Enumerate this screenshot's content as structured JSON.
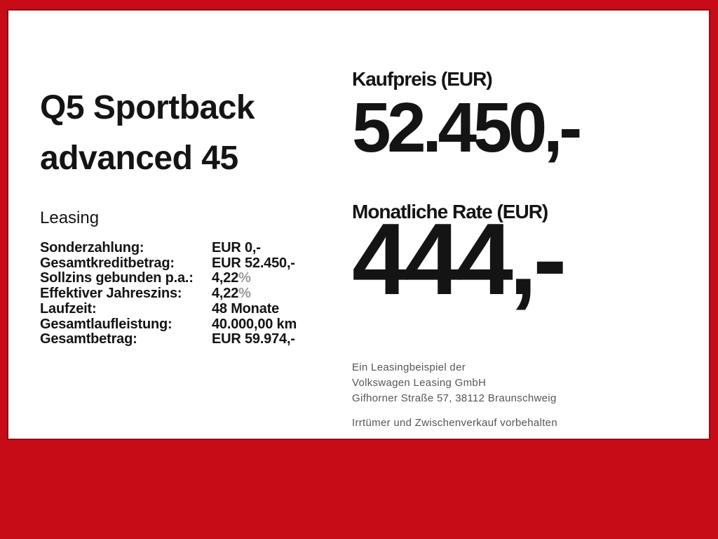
{
  "colors": {
    "frame_red": "#c70b17",
    "card_bg": "#ffffff",
    "card_edge": "#8c1016",
    "text_primary": "#141414",
    "text_muted": "#9b9b9b",
    "disclaimer_gray": "#565656"
  },
  "vehicle": {
    "title_line1": "Q5 Sportback",
    "title_line2": "advanced 45"
  },
  "leasing": {
    "heading": "Leasing",
    "rows": [
      {
        "label": "Sonderzahlung:",
        "value": "EUR 0,-"
      },
      {
        "label": "Gesamtkreditbetrag:",
        "value": "EUR 52.450,-"
      },
      {
        "label": "Sollzins gebunden p.a.:",
        "value": "4,22",
        "suffix": "%"
      },
      {
        "label": "Effektiver Jahreszins:",
        "value": "4,22",
        "suffix": "%"
      },
      {
        "label": "Laufzeit:",
        "value": "48 Monate"
      },
      {
        "label": "Gesamtlaufleistung:",
        "value": "40.000,00 km"
      },
      {
        "label": "Gesamtbetrag:",
        "value": "EUR 59.974,-"
      }
    ]
  },
  "pricing": {
    "purchase_label": "Kaufpreis (EUR)",
    "purchase_value": "52.450,-",
    "monthly_label": "Monatliche Rate (EUR)",
    "monthly_value": "444,-"
  },
  "disclaimer": {
    "line1": "Ein Leasingbeispiel der",
    "line2": "Volkswagen Leasing GmbH",
    "line3": "Gifhorner Straße 57, 38112 Braunschweig",
    "line4": "Irrtümer und Zwischenverkauf vorbehalten"
  }
}
